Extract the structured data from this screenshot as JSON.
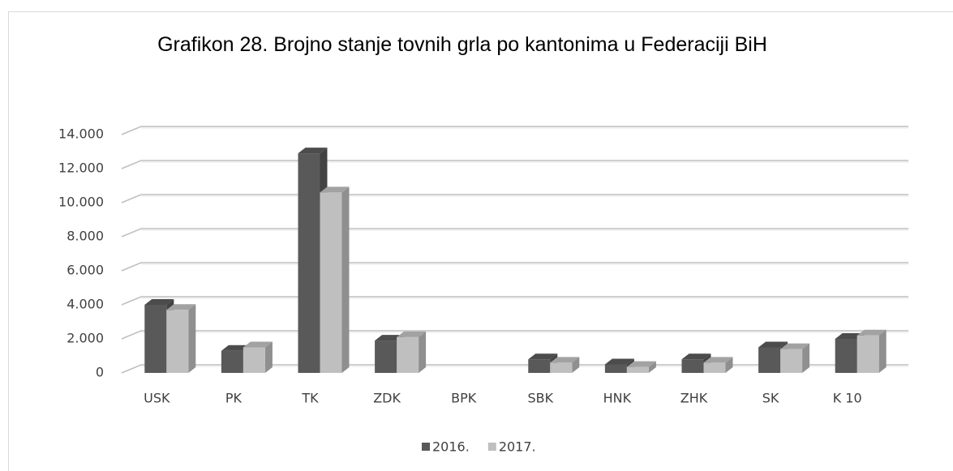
{
  "chart_data": {
    "type": "bar3d",
    "title": "Grafikon 28. Brojno stanje tovnih grla po kantonima u Federaciji BiH",
    "categories": [
      "USK",
      "PK",
      "TK",
      "ZDK",
      "BPK",
      "SBK",
      "HNK",
      "ZHK",
      "SK",
      "K 10"
    ],
    "series": [
      {
        "name": "2016.",
        "color": "#595959",
        "values": [
          4000,
          1300,
          12900,
          1900,
          0,
          800,
          500,
          800,
          1500,
          2000
        ]
      },
      {
        "name": "2017.",
        "color": "#bfbfbf",
        "values": [
          3700,
          1500,
          10600,
          2100,
          0,
          600,
          350,
          600,
          1400,
          2200
        ]
      }
    ],
    "ylim": [
      0,
      14000
    ],
    "yticks": [
      0,
      {
        "value": 2000,
        "label": "2.000"
      },
      {
        "value": 4000,
        "label": "4.000"
      },
      {
        "value": 6000,
        "label": "6.000"
      },
      {
        "value": 8000,
        "label": "8.000"
      },
      {
        "value": 10000,
        "label": "10.000"
      },
      {
        "value": 12000,
        "label": "12.000"
      },
      {
        "value": 14000,
        "label": "14.000"
      }
    ],
    "grid": true,
    "legend": "bottom"
  }
}
